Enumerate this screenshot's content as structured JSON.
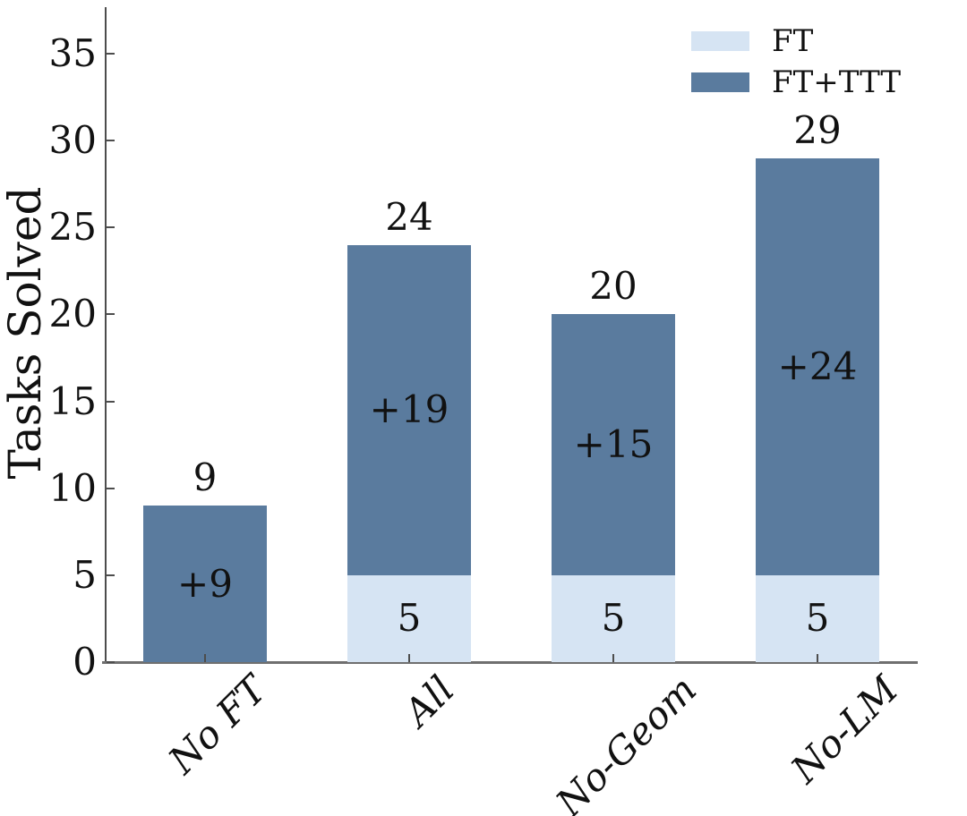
{
  "chart_data": {
    "type": "bar",
    "stacked": true,
    "title": "",
    "xlabel": "",
    "ylabel": "Tasks Solved",
    "categories": [
      "No FT",
      "All",
      "No-Geom",
      "No-LM"
    ],
    "series": [
      {
        "name": "FT",
        "color": "#d6e4f3",
        "values": [
          0,
          5,
          5,
          5
        ]
      },
      {
        "name": "FT+TTT",
        "color": "#5a7b9e",
        "values": [
          9,
          19,
          15,
          24
        ]
      }
    ],
    "stack_totals": [
      9,
      24,
      20,
      29
    ],
    "total_labels": [
      "9",
      "24",
      "20",
      "29"
    ],
    "segment_labels": {
      "FT": [
        "",
        "5",
        "5",
        "5"
      ],
      "FT_TTT": [
        "+9",
        "+19",
        "+15",
        "+24"
      ]
    },
    "yticks": [
      0,
      5,
      10,
      15,
      20,
      25,
      30,
      35
    ],
    "ylim": [
      0,
      37.7
    ],
    "grid": false,
    "legend": {
      "position": "upper right",
      "entries": [
        "FT",
        "FT+TTT"
      ]
    }
  },
  "colors": {
    "ft": "#d6e4f3",
    "ft_ttt": "#5a7b9e",
    "text": "#111111",
    "axis_left": "#4d4d4d",
    "axis_bottom": "#6f6f6f",
    "background": "#ffffff"
  }
}
